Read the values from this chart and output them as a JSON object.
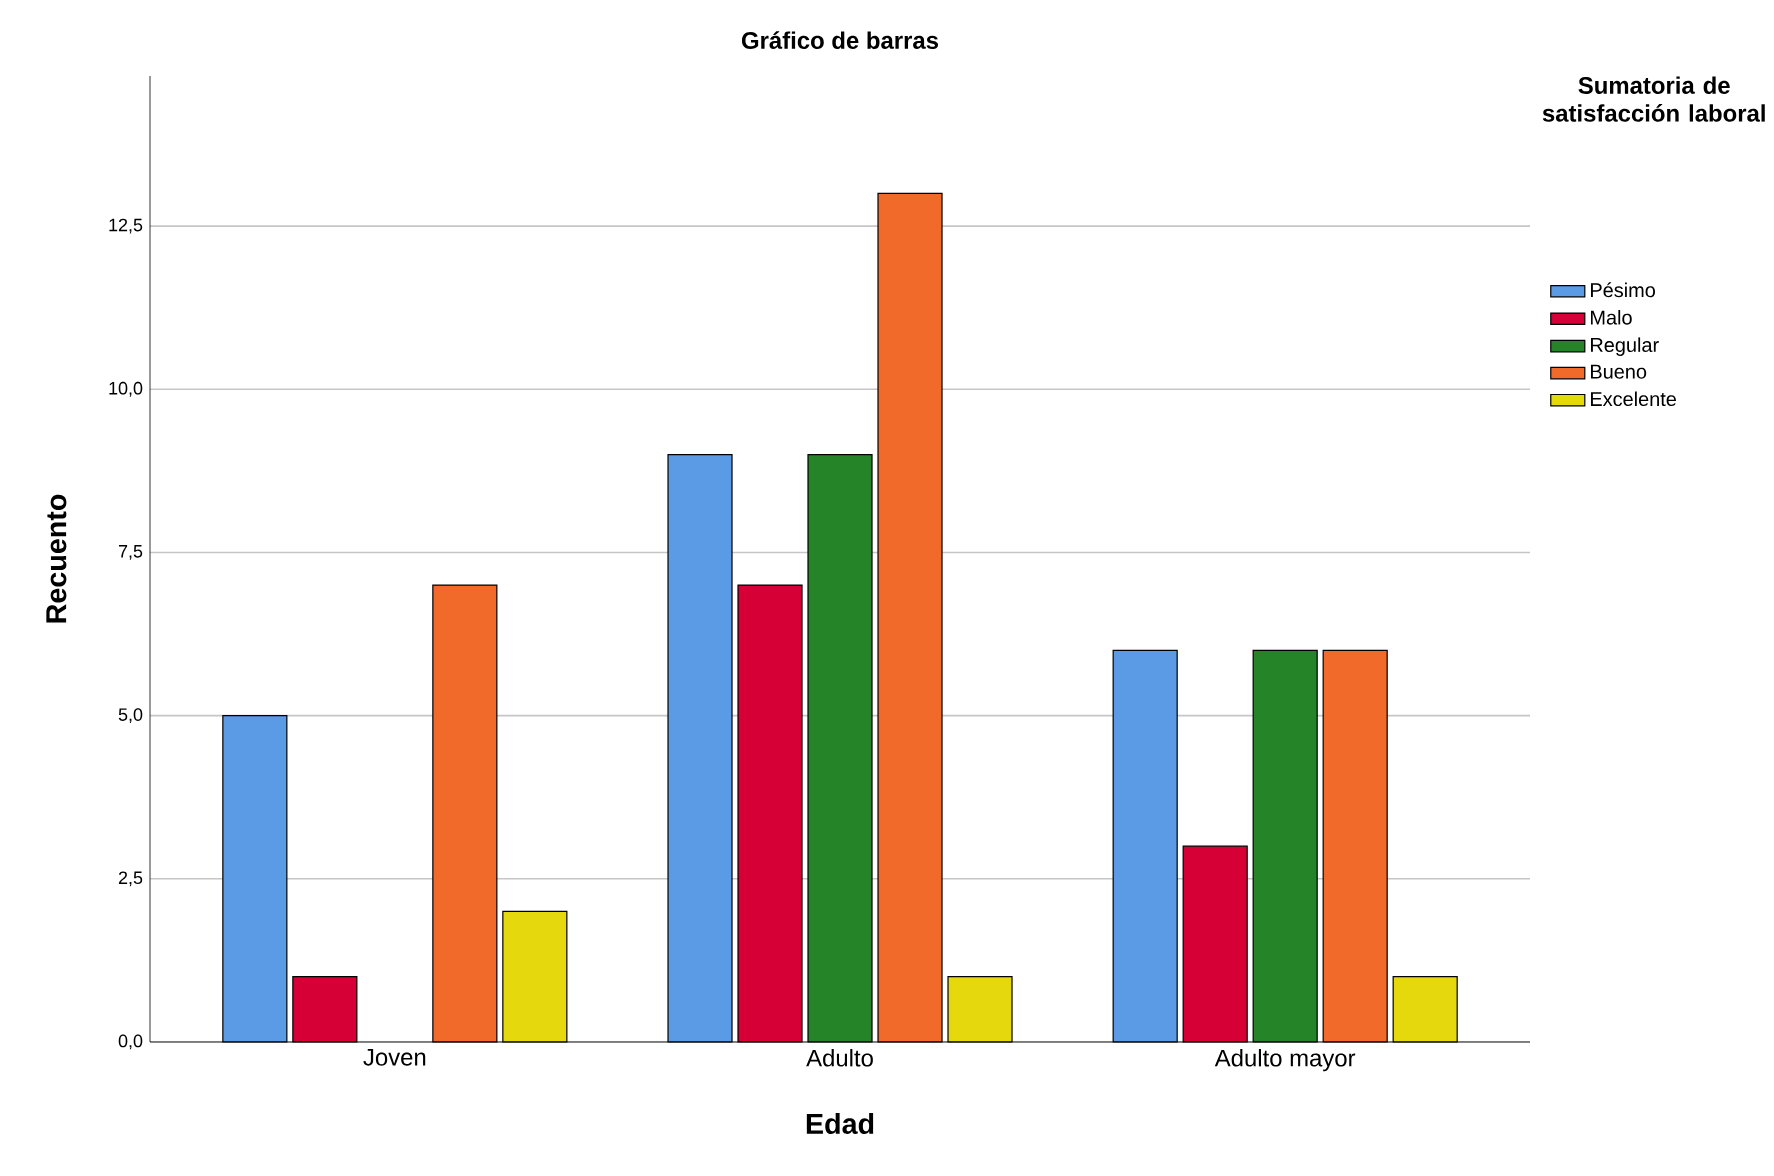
{
  "chart_data": {
    "type": "bar",
    "title": "Gráfico de barras",
    "xlabel": "Edad",
    "ylabel": "Recuento",
    "legend_title": "Sumatoria de satisfacción laboral",
    "categories": [
      "Joven",
      "Adulto",
      "Adulto mayor"
    ],
    "series": [
      {
        "name": "Pésimo",
        "color": "#5b9be6",
        "values": [
          5,
          9,
          6
        ]
      },
      {
        "name": "Malo",
        "color": "#d60036",
        "values": [
          1,
          7,
          3
        ]
      },
      {
        "name": "Regular",
        "color": "#258427",
        "values": [
          null,
          9,
          6
        ]
      },
      {
        "name": "Bueno",
        "color": "#f26a2a",
        "values": [
          7,
          13,
          6
        ]
      },
      {
        "name": "Excelente",
        "color": "#e5d80c",
        "values": [
          2,
          1,
          1
        ]
      }
    ],
    "ylim": [
      0,
      14.8
    ],
    "yticks": [
      {
        "value": 0,
        "label": "0,0"
      },
      {
        "value": 2.5,
        "label": "2,5"
      },
      {
        "value": 5,
        "label": "5,0"
      },
      {
        "value": 7.5,
        "label": "7,5"
      },
      {
        "value": 10,
        "label": "10,0"
      },
      {
        "value": 12.5,
        "label": "12,5"
      }
    ],
    "grid": "y",
    "legend": "right"
  }
}
